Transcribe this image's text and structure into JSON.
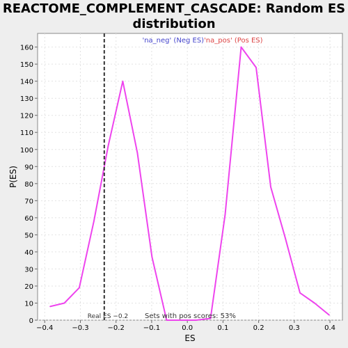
{
  "chart_data": {
    "type": "line",
    "title": "REACTOME_COMPLEMENT_CASCADE: Random ES\ndistribution",
    "xlabel": "ES",
    "ylabel": "P(ES)",
    "xlim": [
      -0.42,
      0.435
    ],
    "ylim": [
      0,
      168
    ],
    "xticks": [
      -0.4,
      -0.3,
      -0.2,
      -0.1,
      0.0,
      0.1,
      0.2,
      0.3,
      0.4
    ],
    "xtick_labels": [
      "−0.4",
      "−0.3",
      "−0.2",
      "−0.1",
      "0.0",
      "0.1",
      "0.2",
      "0.3",
      "0.4"
    ],
    "yticks": [
      0,
      10,
      20,
      30,
      40,
      50,
      60,
      70,
      80,
      90,
      100,
      110,
      120,
      130,
      140,
      150,
      160
    ],
    "grid": true,
    "series": [
      {
        "name": "",
        "color": "#ee44ee",
        "x": [
          -0.385,
          -0.345,
          -0.303,
          -0.262,
          -0.222,
          -0.181,
          -0.14,
          -0.099,
          -0.058,
          -0.017,
          0.024,
          0.065,
          0.106,
          0.151,
          0.193,
          0.234,
          0.275,
          0.316,
          0.357,
          0.398
        ],
        "y": [
          8,
          10,
          19,
          58,
          102,
          140,
          98,
          37,
          0,
          0,
          0,
          1,
          62,
          160,
          148,
          78,
          48,
          16,
          10,
          3
        ]
      }
    ],
    "real_es": {
      "x": -0.233,
      "label": "Real ES −0.2"
    },
    "legend": {
      "neg": "'na_neg' (Neg ES)",
      "pos": "'na_pos' (Pos ES)",
      "neg_color": "#4444cc",
      "pos_color": "#dd4444",
      "placement": "top"
    },
    "annotation": "Sets with pos scores: 53%"
  }
}
